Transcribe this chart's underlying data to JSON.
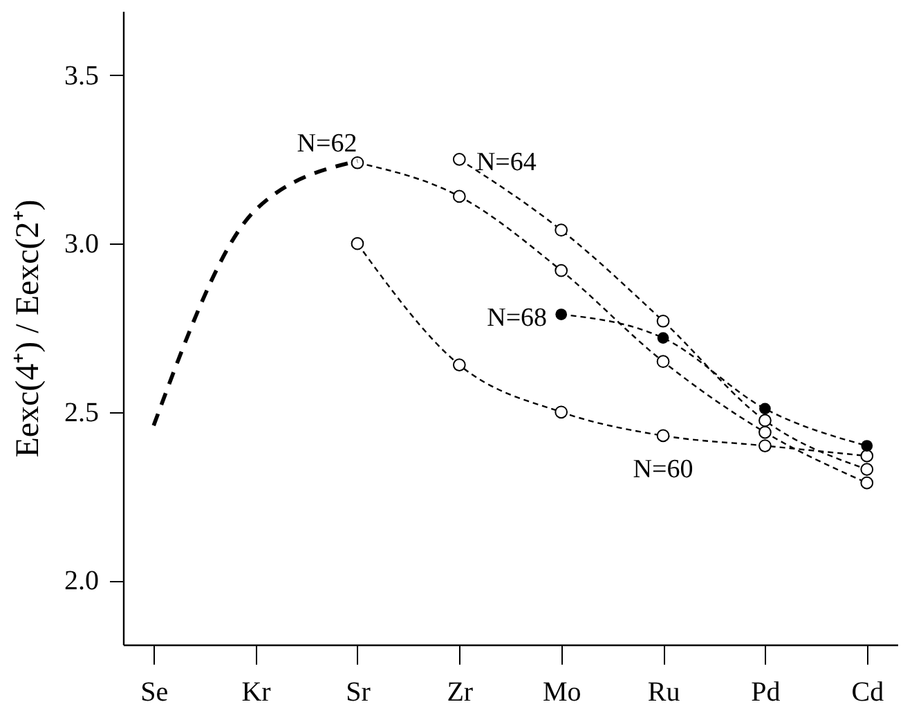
{
  "chart_data": {
    "type": "line",
    "ylabel": "Eexc(4⁺) / Eexc(2⁺)",
    "categories": [
      "Se",
      "Kr",
      "Sr",
      "Zr",
      "Mo",
      "Ru",
      "Pd",
      "Cd"
    ],
    "ylim": [
      1.81,
      3.69
    ],
    "yticks": [
      {
        "value": 2.0,
        "label": "2.0"
      },
      {
        "value": 2.5,
        "label": "2.5"
      },
      {
        "value": 3.0,
        "label": "3.0"
      },
      {
        "value": 3.5,
        "label": "3.5"
      }
    ],
    "grid": false,
    "line_style": "dashed",
    "marker": "circle",
    "series": [
      {
        "name": "N=60",
        "color": "#000000",
        "x": [
          "Sr",
          "Zr",
          "Mo",
          "Ru",
          "Pd",
          "Cd"
        ],
        "values": [
          3.0,
          2.64,
          2.5,
          2.43,
          2.4,
          2.37
        ]
      },
      {
        "name": "N=62",
        "color": "#000000",
        "x": [
          "Sr",
          "Zr",
          "Mo",
          "Ru",
          "Pd",
          "Cd"
        ],
        "values": [
          3.24,
          3.14,
          2.92,
          2.65,
          2.44,
          2.29
        ]
      },
      {
        "name": "N=64",
        "color": "#000000",
        "x": [
          "Zr",
          "Mo",
          "Ru",
          "Pd",
          "Cd"
        ],
        "values": [
          3.25,
          3.04,
          2.77,
          2.475,
          2.33
        ]
      },
      {
        "name": "N=68",
        "color": "#000000",
        "x": [
          "Mo",
          "Ru",
          "Pd",
          "Cd"
        ],
        "values": [
          2.79,
          2.72,
          2.51,
          2.4
        ]
      },
      {
        "color": "#000000",
        "marker": "none",
        "x": [
          "Se",
          "Kr",
          "Sr"
        ],
        "values": [
          2.46,
          3.1,
          3.245
        ]
      }
    ]
  }
}
